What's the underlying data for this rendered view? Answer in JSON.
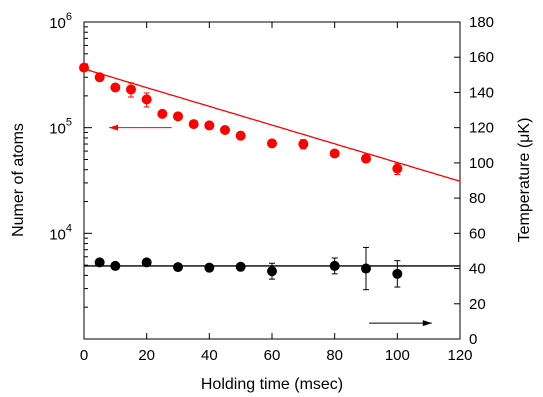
{
  "chart_data": {
    "type": "scatter",
    "xlabel": "Holding time (msec)",
    "ylabel_left": "Numer of atoms",
    "ylabel_right": "Temperature (μK)",
    "x_range": [
      0,
      120
    ],
    "x_ticks": [
      0,
      20,
      40,
      60,
      80,
      100,
      120
    ],
    "x_tick_labels": [
      "0",
      "20",
      "40",
      "60",
      "80",
      "100",
      "120"
    ],
    "y_left_scale": "log",
    "y_left_range": [
      1000,
      1000000
    ],
    "y_left_ticks": [
      10000,
      100000,
      1000000
    ],
    "y_left_tick_labels": [
      {
        "base": "10",
        "exp": "4"
      },
      {
        "base": "10",
        "exp": "5"
      },
      {
        "base": "10",
        "exp": "6"
      }
    ],
    "y_right_range": [
      0,
      180
    ],
    "y_right_ticks": [
      0,
      20,
      40,
      60,
      80,
      100,
      120,
      140,
      160,
      180
    ],
    "y_right_tick_labels": [
      "0",
      "20",
      "40",
      "60",
      "80",
      "100",
      "120",
      "140",
      "160",
      "180"
    ],
    "grid": false,
    "series": [
      {
        "axis": "left",
        "color": "#ff0000",
        "points": [
          {
            "x": 0,
            "y": 370000,
            "err": 0
          },
          {
            "x": 5,
            "y": 300000,
            "err": 0
          },
          {
            "x": 10,
            "y": 240000,
            "err": 0
          },
          {
            "x": 15,
            "y": 230000,
            "err": 35000
          },
          {
            "x": 20,
            "y": 185000,
            "err": 28000
          },
          {
            "x": 25,
            "y": 135000,
            "err": 0
          },
          {
            "x": 30,
            "y": 128000,
            "err": 0
          },
          {
            "x": 35,
            "y": 108000,
            "err": 0
          },
          {
            "x": 40,
            "y": 105000,
            "err": 0
          },
          {
            "x": 45,
            "y": 95000,
            "err": 0
          },
          {
            "x": 50,
            "y": 84000,
            "err": 0
          },
          {
            "x": 60,
            "y": 71000,
            "err": 0
          },
          {
            "x": 70,
            "y": 70000,
            "err": 7000
          },
          {
            "x": 80,
            "y": 57000,
            "err": 0
          },
          {
            "x": 90,
            "y": 51000,
            "err": 0
          },
          {
            "x": 100,
            "y": 41000,
            "err": 5000
          }
        ],
        "fit": {
          "x_start": 0,
          "x_end": 122,
          "y_start": 360000,
          "tau_msec": 49
        }
      },
      {
        "axis": "right",
        "color": "#000000",
        "points": [
          {
            "x": 5,
            "y": 43.5,
            "err": 0
          },
          {
            "x": 10,
            "y": 41.5,
            "err": 0
          },
          {
            "x": 20,
            "y": 43.5,
            "err": 0
          },
          {
            "x": 30,
            "y": 40.8,
            "err": 0
          },
          {
            "x": 40,
            "y": 40.5,
            "err": 0
          },
          {
            "x": 50,
            "y": 41.0,
            "err": 0
          },
          {
            "x": 60,
            "y": 38.5,
            "err": 4.5
          },
          {
            "x": 80,
            "y": 41.5,
            "err": 4.5
          },
          {
            "x": 90,
            "y": 40.0,
            "err": 12.0
          },
          {
            "x": 100,
            "y": 37.0,
            "err": 7.5
          }
        ],
        "fit": {
          "x_start": 0,
          "x_end": 120,
          "y": 41.5
        }
      }
    ],
    "annotations": [
      {
        "type": "arrow",
        "direction": "left",
        "color": "#ff0000",
        "from": {
          "x": 28,
          "y_left": 100000
        },
        "to": {
          "x": 8,
          "y_left": 100000
        }
      },
      {
        "type": "arrow",
        "direction": "right",
        "color": "#000000",
        "from": {
          "x": 91,
          "y_right": 9
        },
        "to": {
          "x": 111,
          "y_right": 9
        }
      }
    ]
  }
}
